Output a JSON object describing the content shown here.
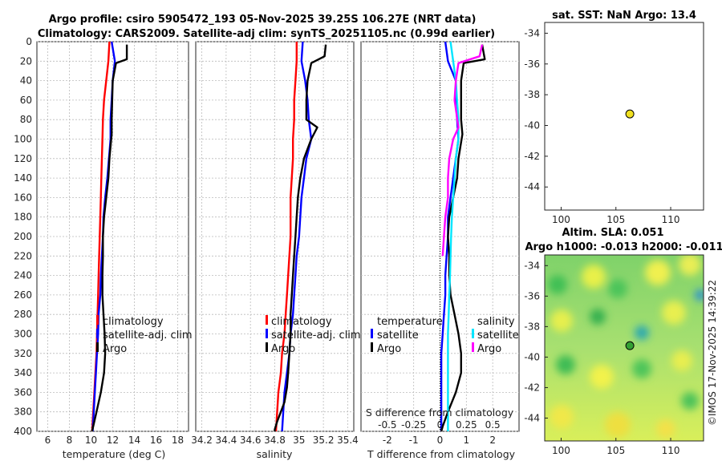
{
  "header": {
    "line1": "Argo profile: csiro 5905472_193 05-Nov-2025 39.25S 106.27E (NRT data)",
    "line2": "Climatology: CARS2009. Satellite-adj clim: synTS_20251105.nc (0.99d earlier)"
  },
  "credit": "©IMOS 17-Nov-2025 14:39:22",
  "colors": {
    "climatology": "#ff0000",
    "satellite": "#0000ff",
    "argo": "#000000",
    "s_satellite": "#00e5ff",
    "s_argo": "#ff00ff"
  },
  "chart_data": [
    {
      "type": "line",
      "id": "temperature",
      "xlabel": "temperature (deg C)",
      "ylim": [
        0,
        400
      ],
      "y_reversed": true,
      "xlim": [
        5,
        19
      ],
      "xticks": [
        6,
        8,
        10,
        12,
        14,
        16,
        18
      ],
      "yticks": [
        0,
        20,
        40,
        60,
        80,
        100,
        120,
        140,
        160,
        180,
        200,
        220,
        240,
        260,
        280,
        300,
        320,
        340,
        360,
        380,
        400
      ],
      "legend": [
        "climatology",
        "satellite-adj. clim",
        "Argo"
      ],
      "series": [
        {
          "name": "climatology",
          "color": "#ff0000",
          "x": [
            11.7,
            11.6,
            11.4,
            11.2,
            11.1,
            11.05,
            11.0,
            10.95,
            10.9,
            10.85,
            10.8,
            10.75,
            10.7,
            10.65,
            10.6,
            10.55,
            10.5,
            10.4,
            10.3,
            10.2,
            10.1
          ],
          "y": [
            0,
            20,
            40,
            60,
            80,
            100,
            120,
            140,
            160,
            180,
            200,
            220,
            240,
            260,
            280,
            300,
            320,
            340,
            360,
            380,
            400
          ]
        },
        {
          "name": "satellite-adj. clim",
          "color": "#0000ff",
          "x": [
            11.9,
            12.2,
            12.0,
            11.9,
            11.8,
            11.8,
            11.65,
            11.5,
            11.3,
            11.15,
            11.1,
            11.0,
            10.9,
            10.85,
            10.7,
            10.65,
            10.55,
            10.45,
            10.35,
            10.25,
            10.15
          ],
          "y": [
            0,
            20,
            40,
            60,
            80,
            100,
            120,
            140,
            160,
            180,
            200,
            220,
            240,
            260,
            280,
            300,
            320,
            340,
            360,
            380,
            400
          ]
        },
        {
          "name": "Argo",
          "color": "#000000",
          "x": [
            13.3,
            13.3,
            12.3,
            12.0,
            11.9,
            11.9,
            11.7,
            11.6,
            11.4,
            11.2,
            11.1,
            11.1,
            11.05,
            11.05,
            11.15,
            11.25,
            11.3,
            11.2,
            10.9,
            10.5,
            10.2,
            10.1
          ],
          "y": [
            3,
            18,
            22,
            40,
            80,
            95,
            120,
            140,
            160,
            180,
            200,
            220,
            240,
            260,
            280,
            300,
            320,
            340,
            360,
            380,
            395,
            400
          ]
        }
      ]
    },
    {
      "type": "line",
      "id": "salinity",
      "xlabel": "salinity",
      "ylim": [
        0,
        400
      ],
      "y_reversed": true,
      "xlim": [
        34.15,
        35.45
      ],
      "xticks": [
        34.2,
        34.4,
        34.6,
        34.8,
        35,
        35.2,
        35.4
      ],
      "legend": [
        "climatology",
        "satellite-adj. clim",
        "Argo"
      ],
      "series": [
        {
          "name": "climatology",
          "color": "#ff0000",
          "x": [
            34.98,
            34.98,
            34.97,
            34.96,
            34.96,
            34.95,
            34.95,
            34.94,
            34.93,
            34.93,
            34.93,
            34.92,
            34.91,
            34.9,
            34.89,
            34.88,
            34.86,
            34.85,
            34.83,
            34.82,
            34.81
          ],
          "y": [
            0,
            20,
            40,
            60,
            80,
            100,
            120,
            140,
            160,
            180,
            200,
            220,
            240,
            260,
            280,
            300,
            320,
            340,
            360,
            380,
            400
          ]
        },
        {
          "name": "satellite-adj. clim",
          "color": "#0000ff",
          "x": [
            35.03,
            35.02,
            35.05,
            35.07,
            35.08,
            35.1,
            35.06,
            35.04,
            35.02,
            35.01,
            35.0,
            34.98,
            34.97,
            34.96,
            34.95,
            34.93,
            34.92,
            34.9,
            34.88,
            34.87,
            34.86
          ],
          "y": [
            0,
            20,
            40,
            60,
            80,
            100,
            120,
            140,
            160,
            180,
            200,
            220,
            240,
            260,
            280,
            300,
            320,
            340,
            360,
            380,
            400
          ]
        },
        {
          "name": "Argo",
          "color": "#000000",
          "x": [
            35.22,
            35.21,
            35.1,
            35.07,
            35.06,
            35.06,
            35.15,
            35.1,
            35.04,
            35.01,
            34.99,
            34.98,
            34.97,
            34.96,
            34.95,
            34.94,
            34.93,
            34.93,
            34.92,
            34.91,
            34.9,
            34.88,
            34.85,
            34.82,
            34.8,
            34.8
          ],
          "y": [
            3,
            15,
            22,
            40,
            60,
            80,
            88,
            100,
            120,
            140,
            160,
            180,
            200,
            220,
            240,
            260,
            280,
            300,
            320,
            340,
            355,
            370,
            380,
            390,
            398,
            400
          ]
        }
      ]
    },
    {
      "type": "line",
      "id": "difference",
      "xlabel": "T difference from climatology",
      "top_axis_label": "S difference from climatology",
      "ylim": [
        0,
        400
      ],
      "y_reversed": true,
      "xlim": [
        -3,
        3
      ],
      "xticks": [
        -2,
        -1,
        0,
        1,
        2
      ],
      "s_ticks_labels": [
        "-0.5",
        "-0.25",
        "0",
        "0.25",
        "0.5"
      ],
      "legend_t_title": "temperature",
      "legend_s_title": "salinity",
      "legend": [
        "satellite",
        "Argo",
        "satellite",
        "Argo"
      ],
      "series": [
        {
          "name": "T satellite",
          "color": "#0000ff",
          "x": [
            0.2,
            0.3,
            0.6,
            0.6,
            0.65,
            0.7,
            0.6,
            0.5,
            0.4,
            0.3,
            0.3,
            0.25,
            0.2,
            0.2,
            0.15,
            0.1,
            0.05,
            0.05,
            0.05,
            0.05,
            0.05
          ],
          "y": [
            0,
            20,
            40,
            60,
            80,
            100,
            120,
            140,
            160,
            180,
            200,
            220,
            240,
            260,
            280,
            300,
            320,
            340,
            360,
            380,
            400
          ]
        },
        {
          "name": "T Argo",
          "color": "#000000",
          "x": [
            1.6,
            1.7,
            0.9,
            0.8,
            0.8,
            0.85,
            0.7,
            0.65,
            0.5,
            0.35,
            0.3,
            0.35,
            0.35,
            0.4,
            0.55,
            0.7,
            0.8,
            0.8,
            0.6,
            0.3,
            0.1,
            0.05
          ],
          "y": [
            3,
            18,
            22,
            40,
            80,
            95,
            120,
            140,
            160,
            180,
            200,
            220,
            240,
            260,
            280,
            300,
            320,
            340,
            360,
            380,
            395,
            400
          ]
        },
        {
          "name": "S satellite",
          "color": "#00e5ff",
          "x": [
            0.4,
            0.5,
            0.6,
            0.65,
            0.7,
            0.7,
            0.6,
            0.55,
            0.5,
            0.45,
            0.42,
            0.4,
            0.38,
            0.35,
            0.33,
            0.3,
            0.3,
            0.3,
            0.3,
            0.3,
            0.3
          ],
          "y": [
            0,
            20,
            40,
            60,
            80,
            100,
            120,
            140,
            160,
            180,
            200,
            220,
            240,
            260,
            280,
            300,
            320,
            340,
            360,
            380,
            400
          ]
        },
        {
          "name": "S Argo",
          "color": "#ff00ff",
          "x": [
            1.6,
            1.5,
            0.7,
            0.6,
            0.55,
            0.7,
            0.5,
            0.35,
            0.3,
            0.3,
            0.2,
            0.15,
            0.1
          ],
          "y": [
            3,
            15,
            22,
            40,
            60,
            88,
            100,
            120,
            140,
            160,
            180,
            200,
            220
          ]
        }
      ]
    },
    {
      "type": "scatter",
      "id": "sst_map",
      "title": "sat. SST: NaN Argo: 13.4",
      "xlim": [
        98.5,
        113
      ],
      "ylim": [
        -45.5,
        -33.3
      ],
      "xticks": [
        100,
        105,
        110
      ],
      "yticks": [
        -34,
        -36,
        -38,
        -40,
        -42,
        -44
      ],
      "points": [
        {
          "lon": 106.27,
          "lat": -39.25,
          "color": "#f0e020"
        }
      ]
    },
    {
      "type": "heatmap",
      "id": "sla_map",
      "title_line1": "Altim. SLA: 0.051",
      "title_line2": "Argo h1000: -0.013 h2000: -0.011",
      "xlim": [
        98.5,
        113
      ],
      "ylim": [
        -45.5,
        -33.3
      ],
      "xticks": [
        100,
        105,
        110
      ],
      "yticks": [
        -34,
        -36,
        -38,
        -40,
        -42,
        -44
      ],
      "points": [
        {
          "lon": 106.27,
          "lat": -39.25,
          "color": "#33a033"
        }
      ]
    }
  ]
}
